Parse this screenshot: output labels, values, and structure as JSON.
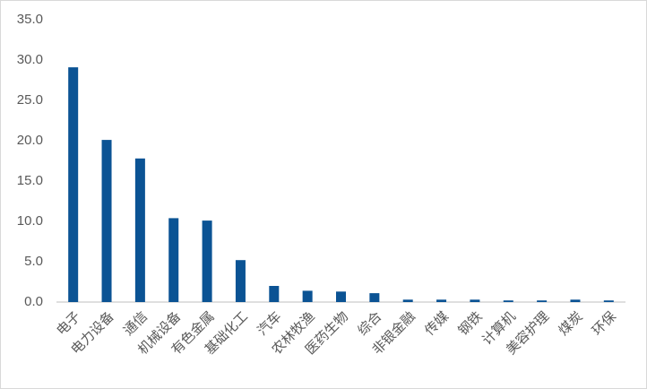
{
  "chart_data": {
    "type": "bar",
    "categories": [
      "电子",
      "电力设备",
      "通信",
      "机械设备",
      "有色金属",
      "基础化工",
      "汽车",
      "农林牧渔",
      "医药生物",
      "综合",
      "非银金融",
      "传媒",
      "钢铁",
      "计算机",
      "美容护理",
      "煤炭",
      "环保"
    ],
    "values": [
      29.1,
      20.1,
      17.8,
      10.4,
      10.1,
      5.2,
      2.0,
      1.4,
      1.3,
      1.1,
      0.3,
      0.3,
      0.3,
      0.2,
      0.2,
      0.3,
      0.2
    ],
    "color": "#0b5394",
    "ylim": [
      0,
      35
    ],
    "yticks": [
      {
        "value": 0,
        "label": "0.0"
      },
      {
        "value": 5,
        "label": "5.0"
      },
      {
        "value": 10,
        "label": "10.0"
      },
      {
        "value": 15,
        "label": "15.0"
      },
      {
        "value": 20,
        "label": "20.0"
      },
      {
        "value": 25,
        "label": "25.0"
      },
      {
        "value": 30,
        "label": "30.0"
      },
      {
        "value": 35,
        "label": "35.0"
      }
    ],
    "grid": false
  }
}
